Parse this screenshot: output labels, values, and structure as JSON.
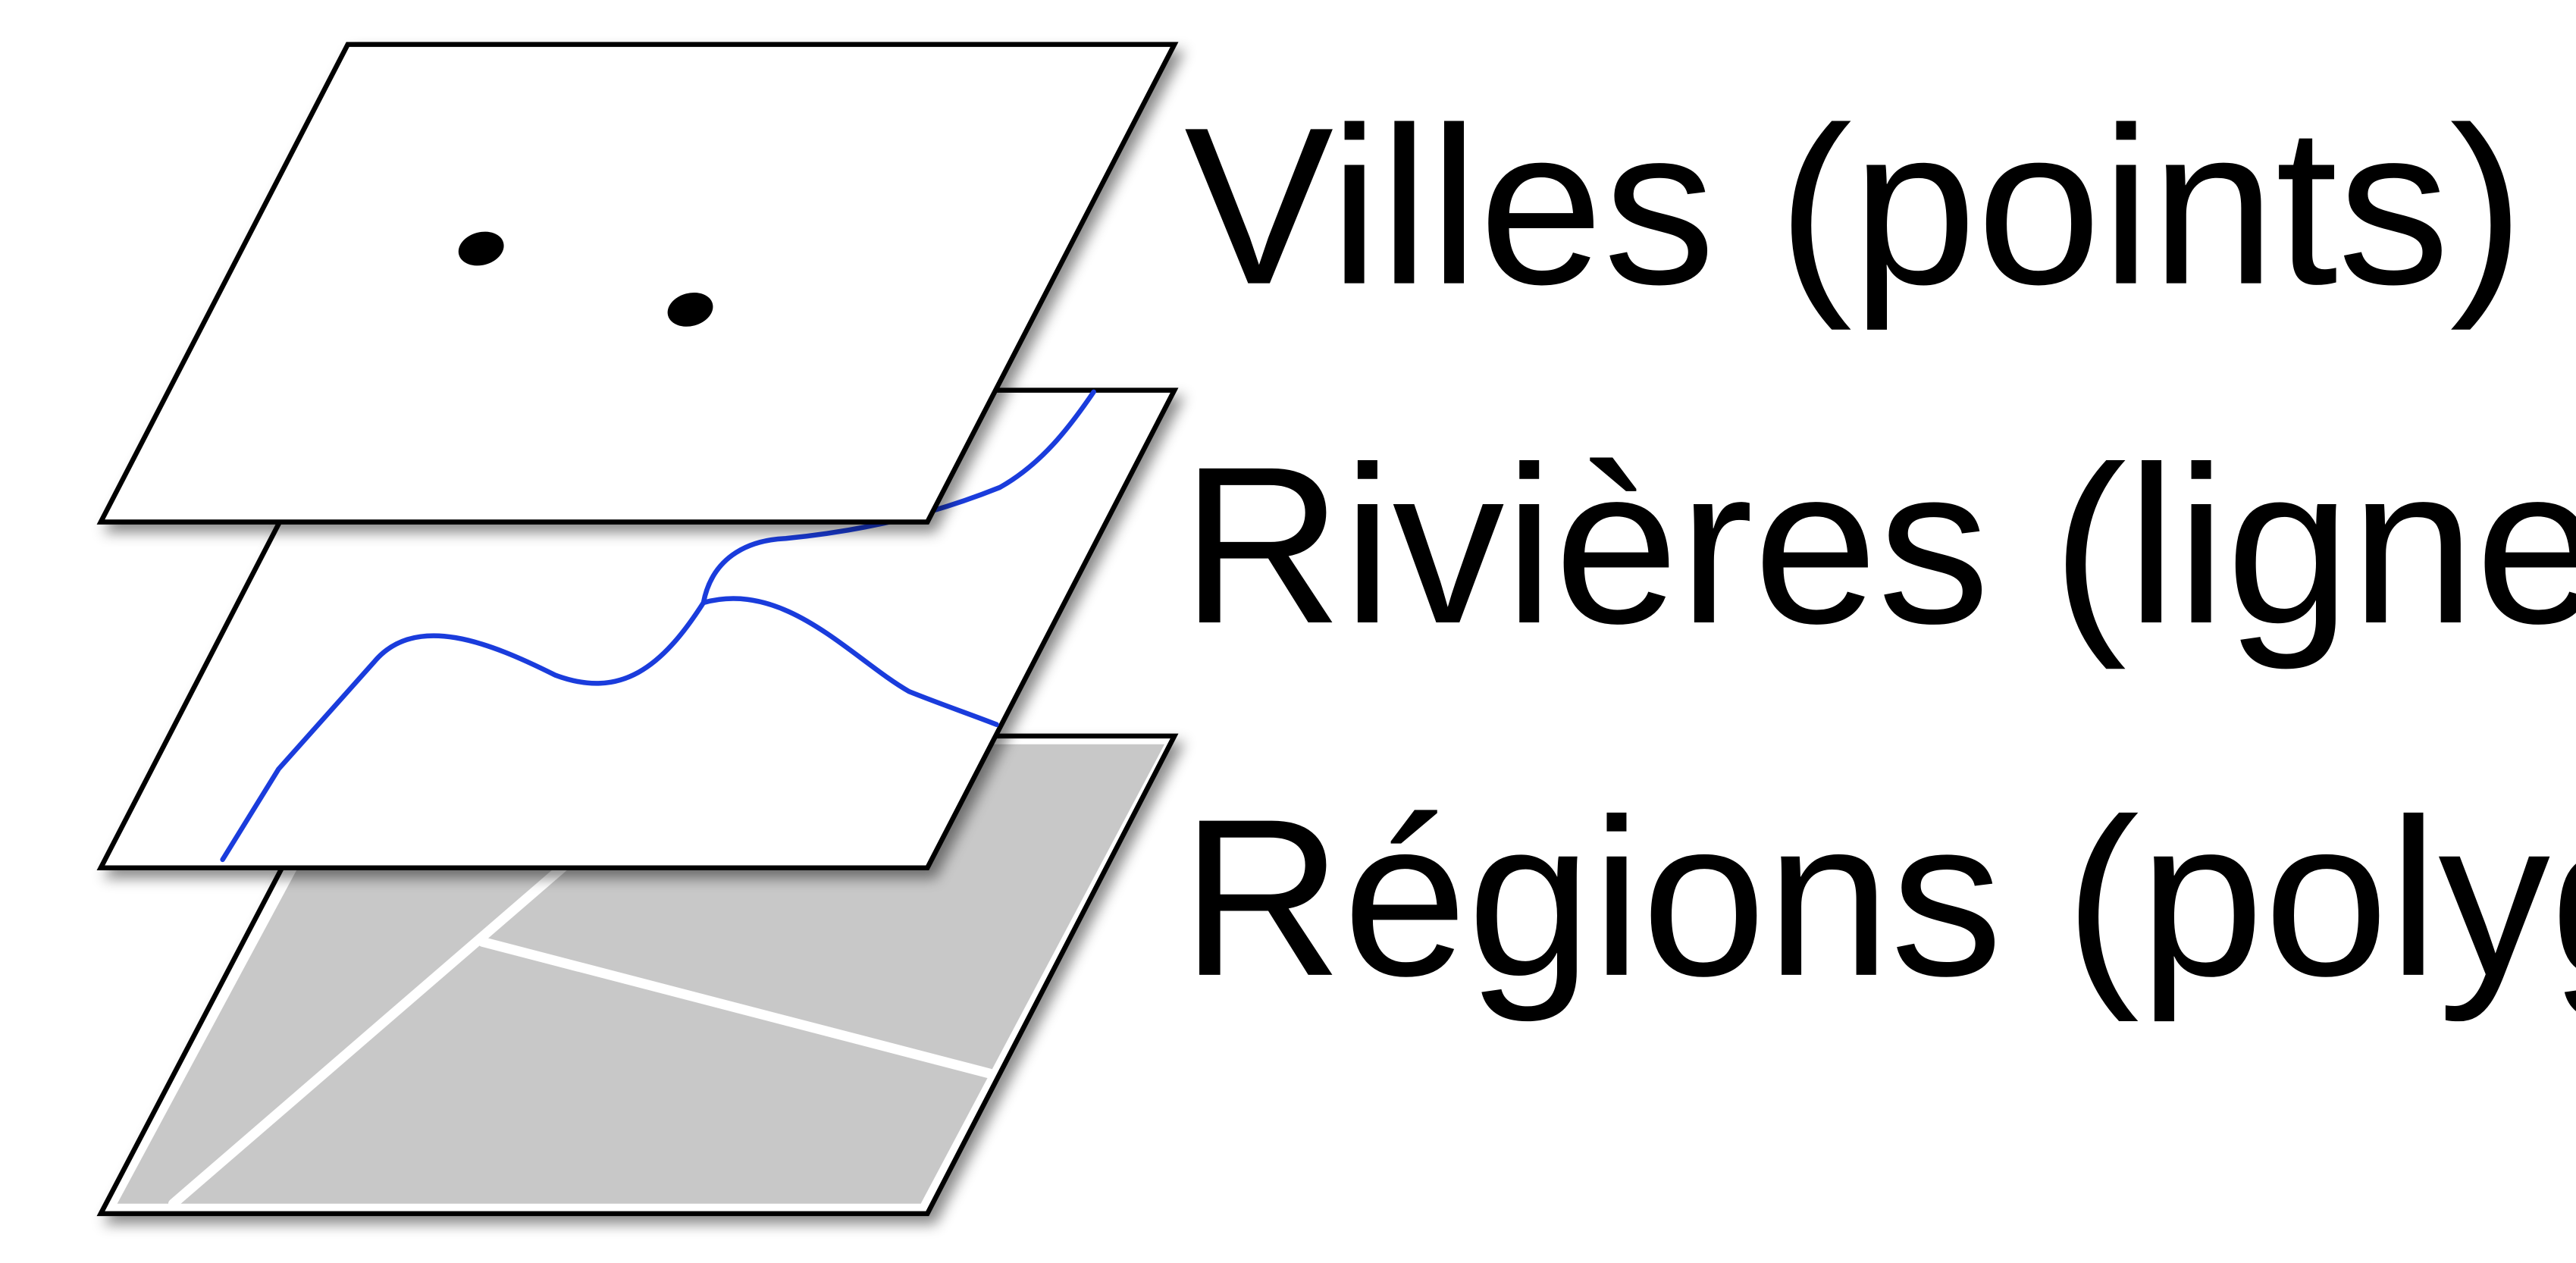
{
  "colors": {
    "background": "#ffffff",
    "plane_fill": "#ffffff",
    "plane_outline": "#000000",
    "region_fill": "#c8c8c8",
    "region_border": "#ffffff",
    "river": "#1a3cdc",
    "city_point": "#000000"
  },
  "layers": [
    {
      "id": "cities",
      "label": "Villes (points)",
      "geometry": "points",
      "count": 2
    },
    {
      "id": "rivers",
      "label": "Rivières (lignes)",
      "geometry": "lines"
    },
    {
      "id": "regions",
      "label": "Régions (polygones)",
      "geometry": "polygons"
    }
  ]
}
